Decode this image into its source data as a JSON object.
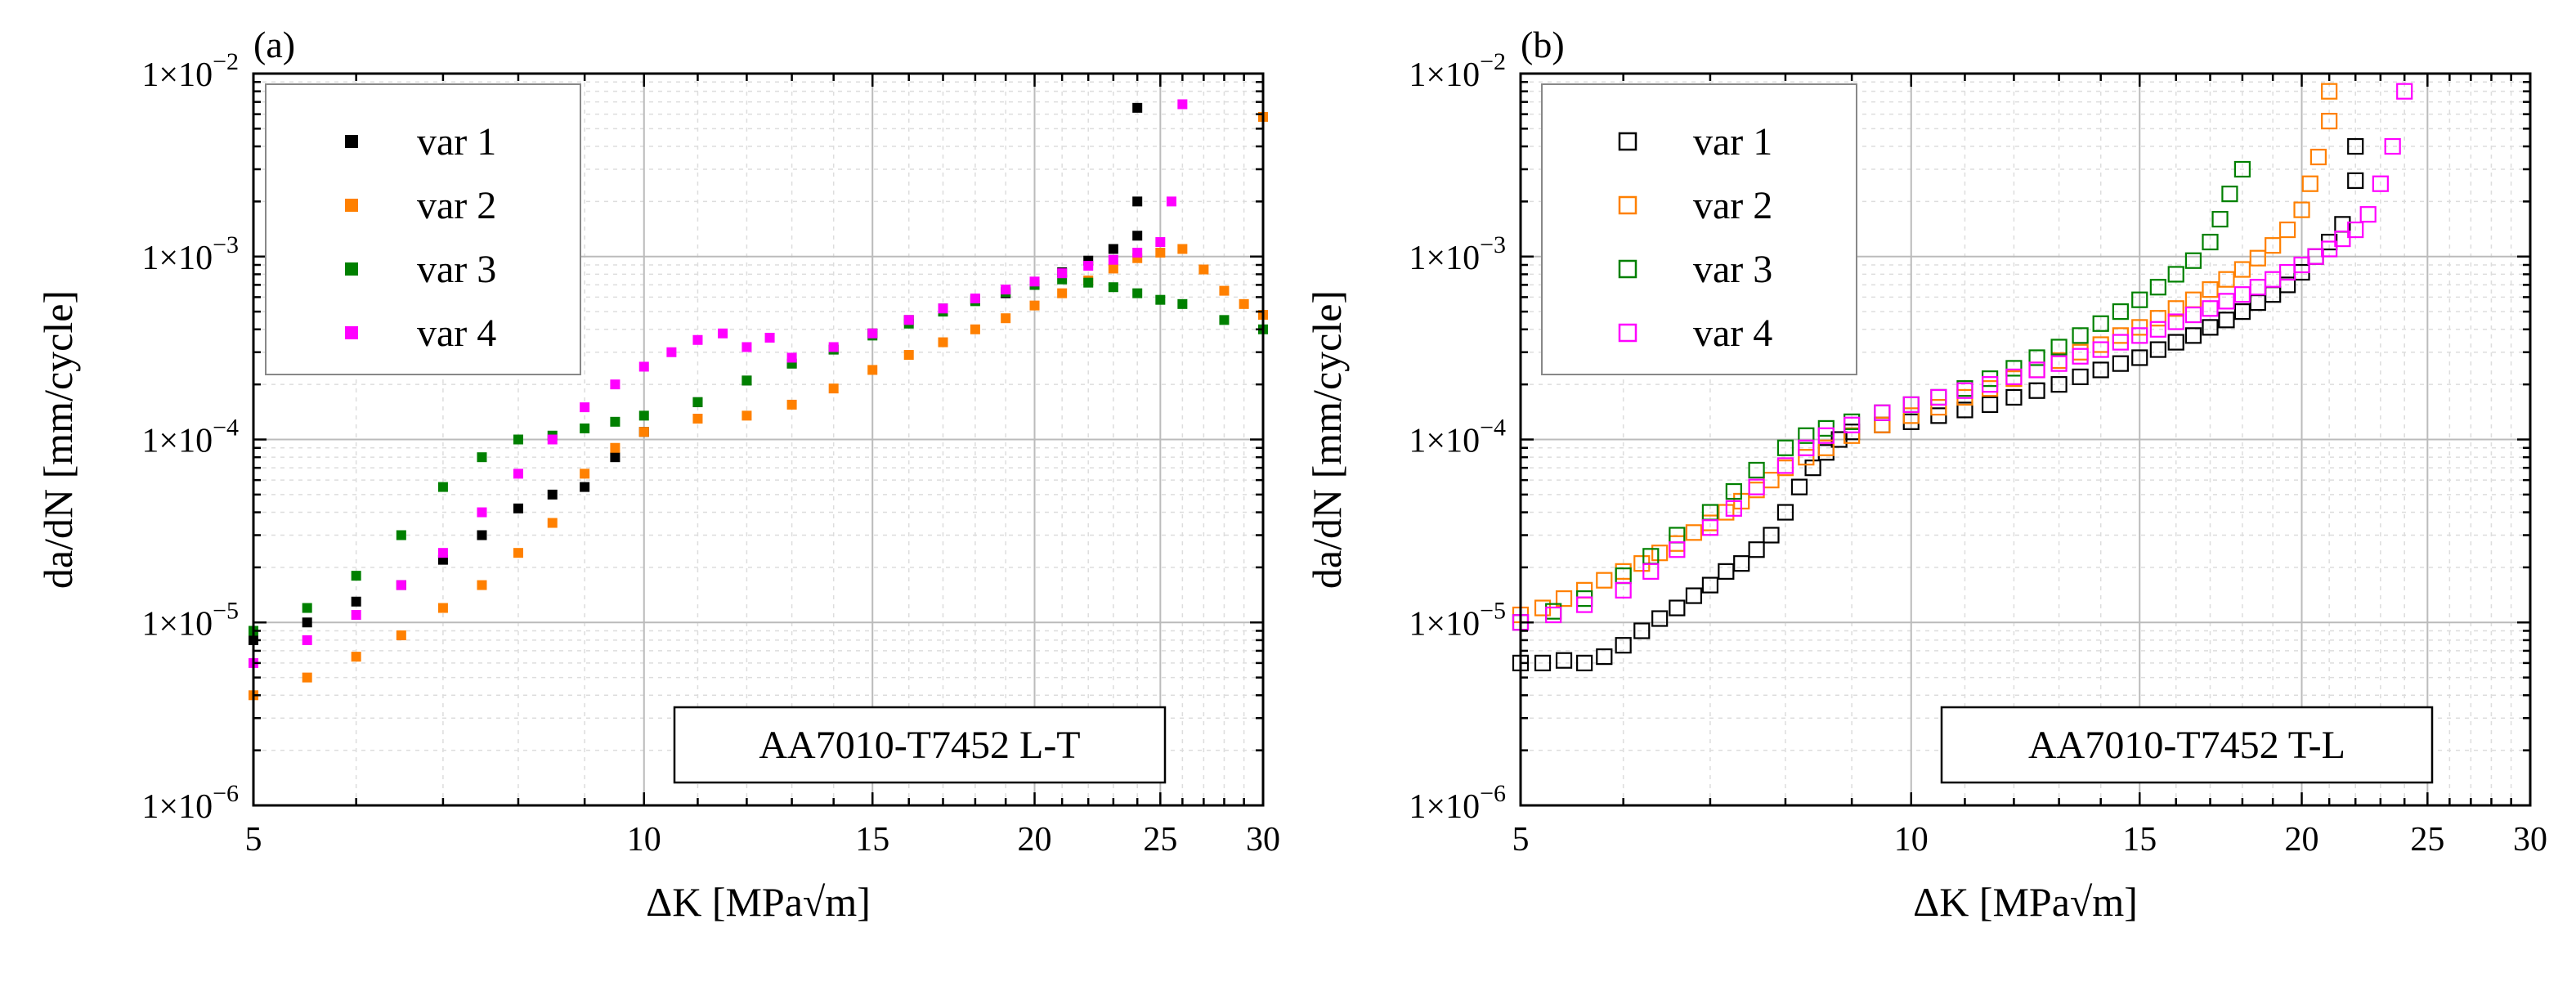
{
  "figure": {
    "panels": [
      "(a)",
      "(b)"
    ]
  },
  "chart_data": [
    {
      "panel": "(a)",
      "type": "scatter",
      "marker": "filled-square",
      "annotation": "AA7010-T7452 L-T",
      "xlabel": "ΔK [MPa√m]",
      "ylabel": "da/dN [mm/cycle]",
      "xscale": "log",
      "yscale": "log",
      "xlim": [
        5,
        30
      ],
      "ylim": [
        1e-06,
        0.01
      ],
      "xticks": [
        5,
        10,
        15,
        20,
        25,
        30
      ],
      "xtick_labels": [
        "5",
        "10",
        "15",
        "20",
        "25",
        "30"
      ],
      "yticks": [
        1e-06,
        1e-05,
        0.0001,
        0.001,
        0.01
      ],
      "ytick_mantissa": "1×10",
      "ytick_exponents": [
        "−6",
        "−5",
        "−4",
        "−3",
        "−2"
      ],
      "grid": true,
      "legend_position": "top-left",
      "series": [
        {
          "name": "var 1",
          "color": "#000000",
          "x": [
            5.0,
            5.5,
            6.0,
            6.5,
            7.0,
            7.5,
            8.0,
            8.5,
            9.0,
            9.5,
            10.0,
            11.0,
            12.0,
            13.0,
            14.0,
            15.0,
            16.0,
            17.0,
            18.0,
            19.0,
            20.0,
            21.0,
            22.0,
            23.0,
            24.0,
            24.0,
            24.0
          ],
          "y": [
            8e-06,
            1e-05,
            1.3e-05,
            1.6e-05,
            2.2e-05,
            3e-05,
            4.2e-05,
            5e-05,
            5.5e-05,
            8e-05,
            0.00011,
            0.00016,
            0.00021,
            0.00026,
            0.00031,
            0.00038,
            0.00045,
            0.00052,
            0.00058,
            0.00063,
            0.0007,
            0.00082,
            0.00095,
            0.0011,
            0.0013,
            0.002,
            0.0065
          ]
        },
        {
          "name": "var 2",
          "color": "#FF8000",
          "x": [
            5.0,
            5.5,
            6.0,
            6.5,
            7.0,
            7.5,
            8.0,
            8.5,
            9.0,
            9.5,
            10.0,
            11.0,
            12.0,
            13.0,
            14.0,
            15.0,
            16.0,
            17.0,
            18.0,
            19.0,
            20.0,
            21.0,
            22.0,
            23.0,
            24.0,
            25.0,
            26.0,
            27.0,
            28.0,
            29.0,
            30.0,
            30.0
          ],
          "y": [
            4e-06,
            5e-06,
            6.5e-06,
            8.5e-06,
            1.2e-05,
            1.6e-05,
            2.4e-05,
            3.5e-05,
            6.5e-05,
            9e-05,
            0.00011,
            0.00013,
            0.000135,
            0.000155,
            0.00019,
            0.00024,
            0.00029,
            0.00034,
            0.0004,
            0.00046,
            0.00054,
            0.00063,
            0.00074,
            0.00086,
            0.00098,
            0.00105,
            0.0011,
            0.00085,
            0.00065,
            0.00055,
            0.00048,
            0.0058
          ]
        },
        {
          "name": "var 3",
          "color": "#008000",
          "x": [
            5.0,
            5.5,
            6.0,
            6.5,
            7.0,
            7.5,
            8.0,
            8.5,
            9.0,
            9.5,
            10.0,
            11.0,
            12.0,
            13.0,
            14.0,
            15.0,
            16.0,
            17.0,
            18.0,
            19.0,
            20.0,
            21.0,
            22.0,
            23.0,
            24.0,
            25.0,
            26.0,
            28.0,
            30.0
          ],
          "y": [
            9e-06,
            1.2e-05,
            1.8e-05,
            3e-05,
            5.5e-05,
            8e-05,
            0.0001,
            0.000105,
            0.000115,
            0.000125,
            0.000135,
            0.00016,
            0.00021,
            0.00026,
            0.00031,
            0.00037,
            0.00043,
            0.0005,
            0.00057,
            0.00064,
            0.0007,
            0.00075,
            0.00072,
            0.00068,
            0.00063,
            0.00058,
            0.00055,
            0.00045,
            0.0004
          ]
        },
        {
          "name": "var 4",
          "color": "#FF00FF",
          "x": [
            5.0,
            5.5,
            6.0,
            6.5,
            7.0,
            7.5,
            8.0,
            8.5,
            9.0,
            9.5,
            10.0,
            10.5,
            11.0,
            11.5,
            12.0,
            12.5,
            13.0,
            14.0,
            15.0,
            16.0,
            17.0,
            18.0,
            19.0,
            20.0,
            21.0,
            22.0,
            23.0,
            24.0,
            25.0,
            25.5,
            26.0
          ],
          "y": [
            6e-06,
            8e-06,
            1.1e-05,
            1.6e-05,
            2.4e-05,
            4e-05,
            6.5e-05,
            0.0001,
            0.00015,
            0.0002,
            0.00025,
            0.0003,
            0.00035,
            0.00038,
            0.00032,
            0.00036,
            0.00028,
            0.00032,
            0.00038,
            0.00045,
            0.00052,
            0.00059,
            0.00066,
            0.00073,
            0.00081,
            0.00089,
            0.00096,
            0.00105,
            0.0012,
            0.002,
            0.0068
          ]
        }
      ]
    },
    {
      "panel": "(b)",
      "type": "scatter",
      "marker": "open-square",
      "annotation": "AA7010-T7452 T-L",
      "xlabel": "ΔK [MPa√m]",
      "ylabel": "da/dN [mm/cycle]",
      "xscale": "log",
      "yscale": "log",
      "xlim": [
        5,
        30
      ],
      "ylim": [
        1e-06,
        0.01
      ],
      "xticks": [
        5,
        10,
        15,
        20,
        25,
        30
      ],
      "xtick_labels": [
        "5",
        "10",
        "15",
        "20",
        "25",
        "30"
      ],
      "yticks": [
        1e-06,
        1e-05,
        0.0001,
        0.001,
        0.01
      ],
      "ytick_mantissa": "1×10",
      "ytick_exponents": [
        "−6",
        "−5",
        "−4",
        "−3",
        "−2"
      ],
      "grid": true,
      "legend_position": "top-left",
      "series": [
        {
          "name": "var 1",
          "color": "#000000",
          "x": [
            5.0,
            5.2,
            5.4,
            5.6,
            5.8,
            6.0,
            6.2,
            6.4,
            6.6,
            6.8,
            7.0,
            7.2,
            7.4,
            7.6,
            7.8,
            8.0,
            8.2,
            8.4,
            8.6,
            8.8,
            9.0,
            9.5,
            10.0,
            10.5,
            11.0,
            11.5,
            12.0,
            12.5,
            13.0,
            13.5,
            14.0,
            14.5,
            15.0,
            15.5,
            16.0,
            16.5,
            17.0,
            17.5,
            18.0,
            18.5,
            19.0,
            19.5,
            20.0,
            20.5,
            21.0,
            21.5,
            22.0,
            22.0
          ],
          "y": [
            6e-06,
            6e-06,
            6.2e-06,
            6e-06,
            6.5e-06,
            7.5e-06,
            9e-06,
            1.05e-05,
            1.2e-05,
            1.4e-05,
            1.6e-05,
            1.9e-05,
            2.1e-05,
            2.5e-05,
            3e-05,
            4e-05,
            5.5e-05,
            7e-05,
            8.5e-05,
            0.0001,
            0.00011,
            0.00012,
            0.000125,
            0.000135,
            0.000145,
            0.000155,
            0.00017,
            0.000185,
            0.0002,
            0.00022,
            0.00024,
            0.00026,
            0.00028,
            0.00031,
            0.00034,
            0.00037,
            0.00041,
            0.00045,
            0.0005,
            0.00056,
            0.00062,
            0.0007,
            0.00082,
            0.001,
            0.0012,
            0.0015,
            0.0026,
            0.004
          ]
        },
        {
          "name": "var 2",
          "color": "#FF8000",
          "x": [
            5.0,
            5.2,
            5.4,
            5.6,
            5.8,
            6.0,
            6.2,
            6.4,
            6.6,
            6.8,
            7.0,
            7.2,
            7.4,
            7.6,
            7.8,
            8.0,
            8.3,
            8.6,
            9.0,
            9.5,
            10.0,
            10.5,
            11.0,
            11.5,
            12.0,
            12.5,
            13.0,
            13.5,
            14.0,
            14.5,
            15.0,
            15.5,
            16.0,
            16.5,
            17.0,
            17.5,
            18.0,
            18.5,
            19.0,
            19.5,
            20.0,
            20.3,
            20.6,
            21.0,
            21.0
          ],
          "y": [
            1.1e-05,
            1.2e-05,
            1.35e-05,
            1.5e-05,
            1.7e-05,
            1.9e-05,
            2.1e-05,
            2.4e-05,
            2.7e-05,
            3.1e-05,
            3.5e-05,
            4e-05,
            4.6e-05,
            5.3e-05,
            6e-05,
            7e-05,
            8e-05,
            9e-05,
            0.000105,
            0.00012,
            0.000135,
            0.00015,
            0.00017,
            0.00019,
            0.000215,
            0.00024,
            0.00027,
            0.0003,
            0.00033,
            0.00037,
            0.00041,
            0.00046,
            0.00052,
            0.00058,
            0.00066,
            0.00075,
            0.00085,
            0.00098,
            0.00115,
            0.0014,
            0.0018,
            0.0025,
            0.0035,
            0.0055,
            0.008
          ]
        },
        {
          "name": "var 3",
          "color": "#008000",
          "x": [
            5.0,
            5.3,
            5.6,
            6.0,
            6.3,
            6.6,
            7.0,
            7.3,
            7.6,
            8.0,
            8.3,
            8.6,
            9.0,
            9.5,
            10.0,
            10.5,
            11.0,
            11.5,
            12.0,
            12.5,
            13.0,
            13.5,
            14.0,
            14.5,
            15.0,
            15.5,
            16.0,
            16.5,
            17.0,
            17.3,
            17.6,
            18.0
          ],
          "y": [
            1e-05,
            1.15e-05,
            1.35e-05,
            1.8e-05,
            2.3e-05,
            3e-05,
            4e-05,
            5.2e-05,
            6.8e-05,
            9e-05,
            0.000105,
            0.000115,
            0.000125,
            0.00014,
            0.000155,
            0.00017,
            0.00019,
            0.000215,
            0.000245,
            0.00028,
            0.00032,
            0.00037,
            0.00043,
            0.0005,
            0.00058,
            0.00068,
            0.0008,
            0.00095,
            0.0012,
            0.0016,
            0.0022,
            0.003
          ]
        },
        {
          "name": "var 4",
          "color": "#FF00FF",
          "x": [
            5.0,
            5.3,
            5.6,
            6.0,
            6.3,
            6.6,
            7.0,
            7.3,
            7.6,
            8.0,
            8.3,
            8.6,
            9.0,
            9.5,
            10.0,
            10.5,
            11.0,
            11.5,
            12.0,
            12.5,
            13.0,
            13.5,
            14.0,
            14.5,
            15.0,
            15.5,
            16.0,
            16.5,
            17.0,
            17.5,
            18.0,
            18.5,
            19.0,
            19.5,
            20.0,
            20.5,
            21.0,
            21.5,
            22.0,
            22.5,
            23.0,
            23.5,
            24.0
          ],
          "y": [
            1e-05,
            1.1e-05,
            1.25e-05,
            1.5e-05,
            1.9e-05,
            2.5e-05,
            3.3e-05,
            4.2e-05,
            5.5e-05,
            7.2e-05,
            9e-05,
            0.000105,
            0.00012,
            0.00014,
            0.000155,
            0.00017,
            0.000185,
            0.0002,
            0.00022,
            0.00024,
            0.00026,
            0.000285,
            0.00031,
            0.00034,
            0.00037,
            0.0004,
            0.00044,
            0.00048,
            0.00052,
            0.00057,
            0.00062,
            0.00068,
            0.00075,
            0.00082,
            0.0009,
            0.001,
            0.0011,
            0.00125,
            0.0014,
            0.0017,
            0.0025,
            0.004,
            0.008
          ]
        }
      ]
    }
  ]
}
